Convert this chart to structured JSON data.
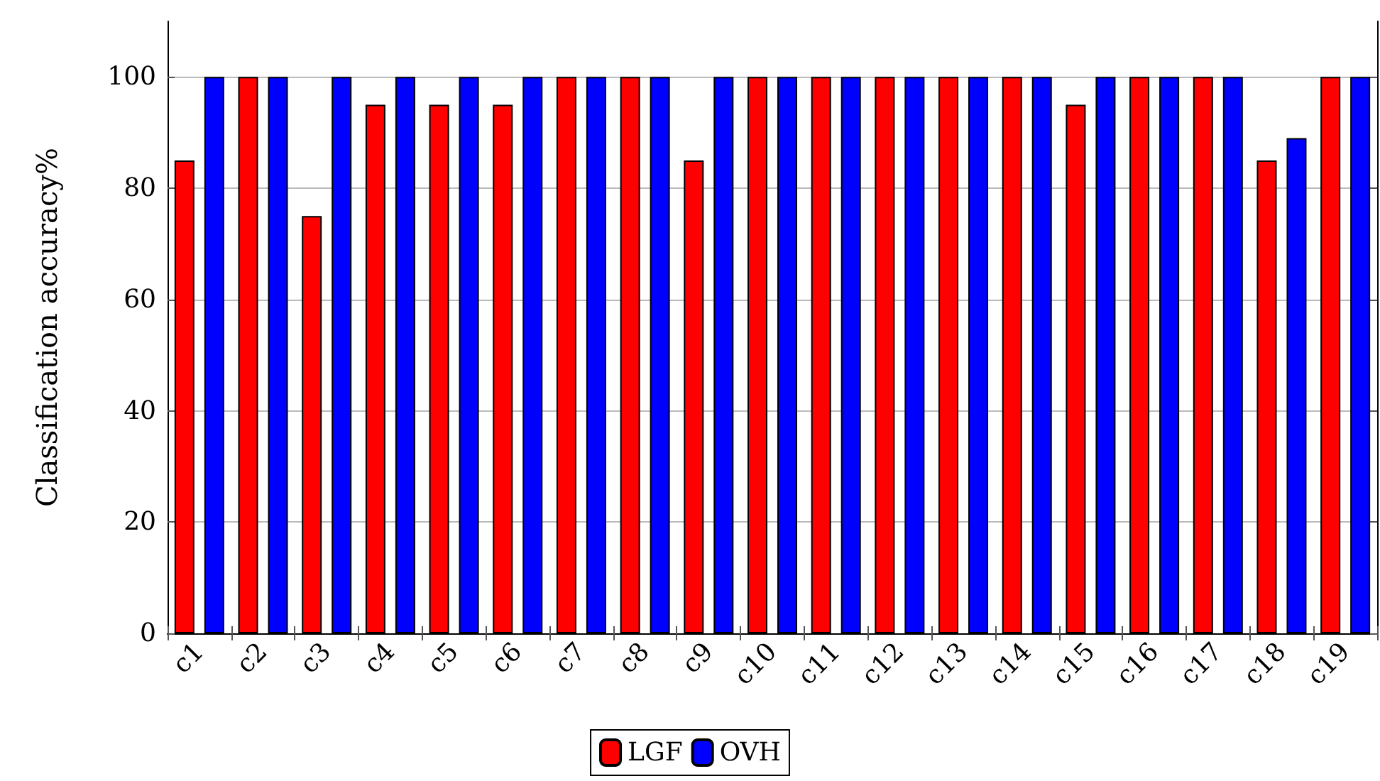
{
  "chart_data": {
    "type": "bar",
    "ylabel": "Classification accuracy%",
    "categories": [
      "c1",
      "c2",
      "c3",
      "c4",
      "c5",
      "c6",
      "c7",
      "c8",
      "c9",
      "c10",
      "c11",
      "c12",
      "c13",
      "c14",
      "c15",
      "c16",
      "c17",
      "c18",
      "c19"
    ],
    "series": [
      {
        "name": "LGF",
        "color": "#ff0000",
        "values": [
          85,
          100,
          75,
          95,
          95,
          95,
          100,
          100,
          85,
          100,
          100,
          100,
          100,
          100,
          95,
          100,
          100,
          85,
          100
        ]
      },
      {
        "name": "OVH",
        "color": "#0000ff",
        "values": [
          100,
          100,
          100,
          100,
          100,
          100,
          100,
          100,
          100,
          100,
          100,
          100,
          100,
          100,
          100,
          100,
          100,
          89,
          100
        ]
      }
    ],
    "ylim": [
      0,
      110
    ],
    "yticks": [
      0,
      20,
      40,
      60,
      80,
      100
    ],
    "grid": "y",
    "legend": "bottom"
  }
}
